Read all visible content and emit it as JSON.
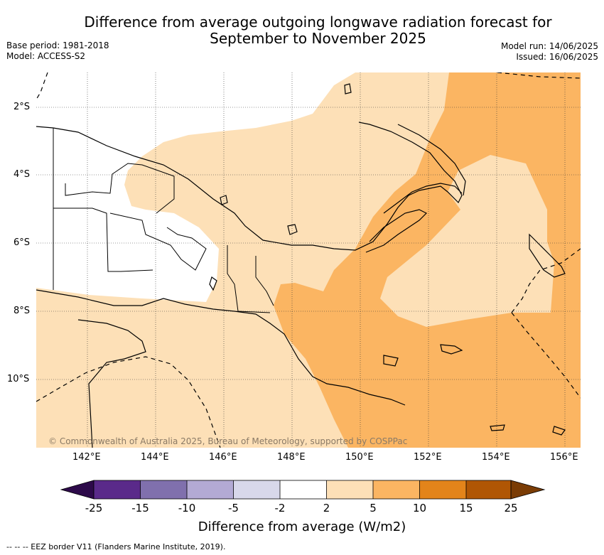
{
  "title_line1": "Difference from average outgoing longwave radiation forecast for",
  "title_line2": "September to November 2025",
  "base_period": "Base period: 1981-2018",
  "model": "Model: ACCESS-S2",
  "model_run": "Model run: 14/06/2025",
  "issued": "Issued: 16/06/2025",
  "lat_ticks": [
    "2°S",
    "4°S",
    "6°S",
    "8°S",
    "10°S"
  ],
  "lon_ticks": [
    "142°E",
    "144°E",
    "146°E",
    "148°E",
    "150°E",
    "152°E",
    "154°E",
    "156°E"
  ],
  "copyright": "© Commonwealth of Australia 2025, Bureau of Meteorology, supported by COSPPac",
  "colorbar": {
    "title": "Difference from average (W/m2)",
    "labels": [
      "-25",
      "-15",
      "-10",
      "-5",
      "-2",
      "2",
      "5",
      "10",
      "15",
      "25"
    ],
    "colors": {
      "lt_-25": "#2d0a4a",
      "-25_-15": "#5a2a8a",
      "-15_-10": "#8070ad",
      "-10_-5": "#b3aad4",
      "-5_-2": "#d8d8ea",
      "-2_2": "#ffffff",
      "2_5": "#fde0b7",
      "5_10": "#fbb562",
      "10_15": "#e3841a",
      "15_25": "#b05604",
      "gt_25": "#7a3c05"
    }
  },
  "footer": "--  --  -- EEZ border V11 (Flanders Marine Institute, 2019)."
}
